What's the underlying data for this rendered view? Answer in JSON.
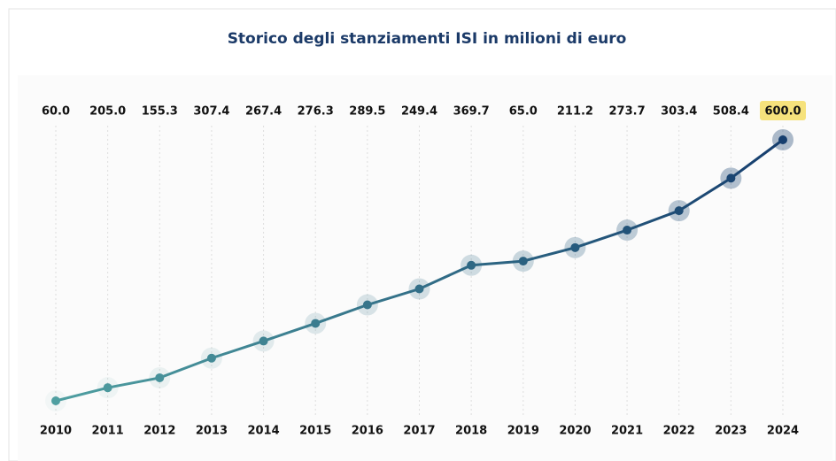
{
  "chart_data": {
    "type": "line",
    "title": "Storico degli stanziamenti ISI in milioni di euro",
    "categories": [
      "2010",
      "2011",
      "2012",
      "2013",
      "2014",
      "2015",
      "2016",
      "2017",
      "2018",
      "2019",
      "2020",
      "2021",
      "2022",
      "2023",
      "2024"
    ],
    "values": [
      60.0,
      205.0,
      155.3,
      307.4,
      267.4,
      276.3,
      289.5,
      249.4,
      369.7,
      65.0,
      211.2,
      273.7,
      303.4,
      508.4,
      600.0
    ],
    "value_labels": [
      "60.0",
      "205.0",
      "155.3",
      "307.4",
      "267.4",
      "276.3",
      "289.5",
      "249.4",
      "369.7",
      "65.0",
      "211.2",
      "273.7",
      "303.4",
      "508.4",
      "600.0"
    ],
    "cumulative": true,
    "color_start": "#4f9fa1",
    "color_end": "#163e6e",
    "highlight_color": "#f6e27c",
    "grid": true
  }
}
